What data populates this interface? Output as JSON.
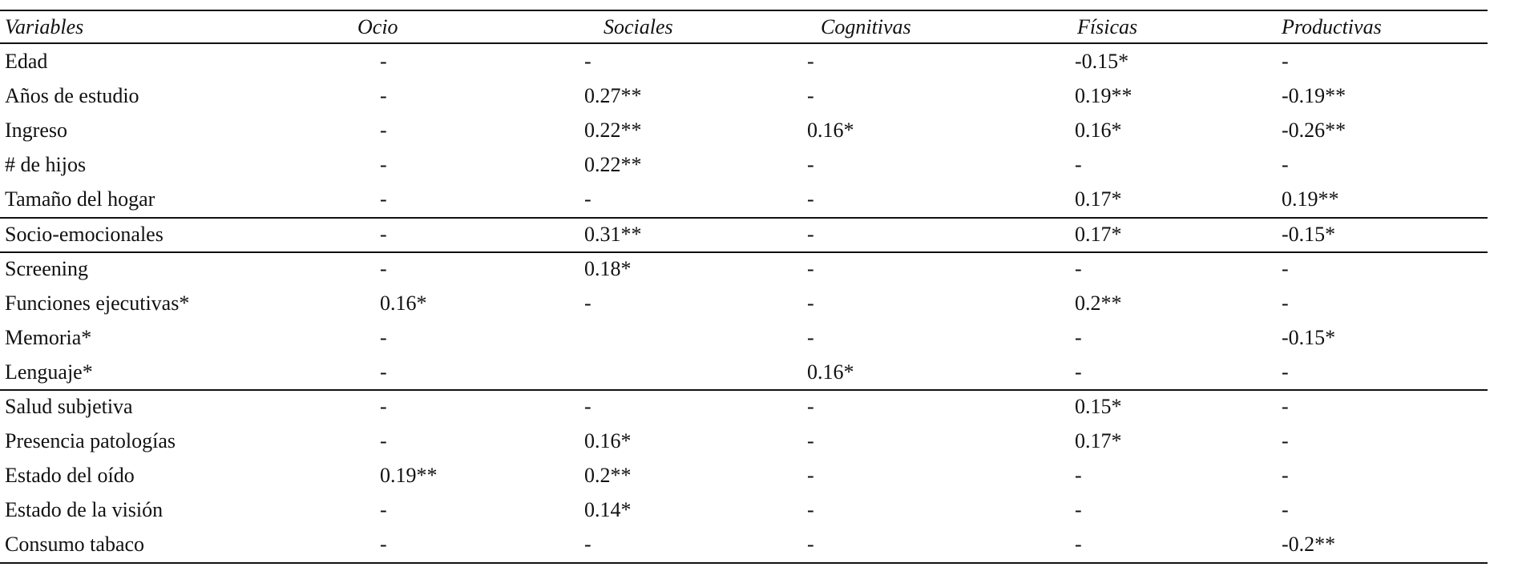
{
  "table": {
    "header": [
      "Variables",
      "Ocio",
      "Sociales",
      "Cognitivas",
      "Físicas",
      "Productivas"
    ],
    "rows": [
      [
        "Edad",
        "-",
        "-",
        "-",
        "-0.15*",
        "-"
      ],
      [
        "Años de estudio",
        "-",
        "0.27**",
        "-",
        "0.19**",
        "-0.19**"
      ],
      [
        "Ingreso",
        "-",
        "0.22**",
        "0.16*",
        "0.16*",
        "-0.26**"
      ],
      [
        "# de hijos",
        "-",
        "0.22**",
        "-",
        "-",
        "-"
      ],
      [
        "Tamaño del hogar",
        "-",
        "-",
        "-",
        "0.17*",
        "0.19**"
      ],
      [
        "Socio-emocionales",
        "-",
        "0.31**",
        "-",
        "0.17*",
        "-0.15*"
      ],
      [
        "Screening",
        "-",
        "0.18*",
        "-",
        "-",
        "-"
      ],
      [
        "Funciones ejecutivas*",
        "0.16*",
        "-",
        "-",
        "0.2**",
        "-"
      ],
      [
        "Memoria*",
        "-",
        null,
        "-",
        "-",
        "-0.15*"
      ],
      [
        "Lenguaje*",
        "-",
        null,
        "0.16*",
        "-",
        "-"
      ],
      [
        "Salud subjetiva",
        "-",
        "-",
        "-",
        "0.15*",
        "-"
      ],
      [
        "Presencia patologías",
        "-",
        "0.16*",
        "-",
        "0.17*",
        "-"
      ],
      [
        "Estado del oído",
        "0.19**",
        "0.2**",
        "-",
        "-",
        "-"
      ],
      [
        "Estado de la visión",
        "-",
        "0.14*",
        "-",
        "-",
        "-"
      ],
      [
        "Consumo tabaco",
        "-",
        "-",
        "-",
        "-",
        "-0.2**"
      ]
    ]
  }
}
